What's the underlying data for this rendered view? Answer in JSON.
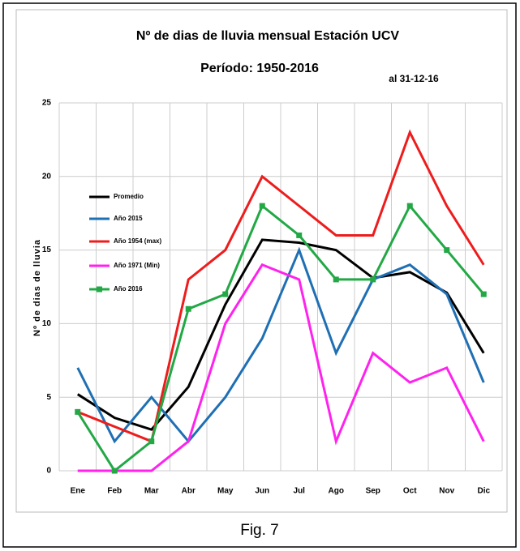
{
  "chart_data": {
    "type": "line",
    "title": "Nº de dias de lluvia mensual Estación UCV",
    "subtitle": "Período: 1950-2016",
    "annotation": "al 31-12-16",
    "y_label": "Nº de dias de lluvia",
    "caption": "Fig. 7",
    "categories": [
      "Ene",
      "Feb",
      "Mar",
      "Abr",
      "May",
      "Jun",
      "Jul",
      "Ago",
      "Sep",
      "Oct",
      "Nov",
      "Dic"
    ],
    "series": [
      {
        "name": "Promedio",
        "color": "#000000",
        "values": [
          5.2,
          3.6,
          2.8,
          5.7,
          11.3,
          15.7,
          15.5,
          15.0,
          13.1,
          13.5,
          12.1,
          8.0
        ]
      },
      {
        "name": "Año 2015",
        "color": "#1f6fb4",
        "values": [
          7,
          2,
          5,
          2,
          5,
          9,
          15,
          8,
          13,
          14,
          12,
          6
        ]
      },
      {
        "name": "Año 1954 (max)",
        "color": "#ee1c1c",
        "values": [
          4,
          3,
          2,
          13,
          15,
          20,
          18,
          16,
          16,
          23,
          18,
          14
        ]
      },
      {
        "name": "Año 1971 (Min)",
        "color": "#ff22ee",
        "values": [
          0,
          0,
          0,
          2,
          10,
          14,
          13,
          2,
          8,
          6,
          7,
          2
        ]
      },
      {
        "name": "Año 2016",
        "color": "#22a845",
        "marker": "square",
        "values": [
          4,
          0,
          2,
          11,
          12,
          18,
          16,
          13,
          13,
          18,
          15,
          12
        ]
      }
    ],
    "ylim": [
      0,
      25
    ],
    "yticks": [
      0,
      5,
      10,
      15,
      20,
      25
    ],
    "grid": true,
    "legend": "left"
  }
}
